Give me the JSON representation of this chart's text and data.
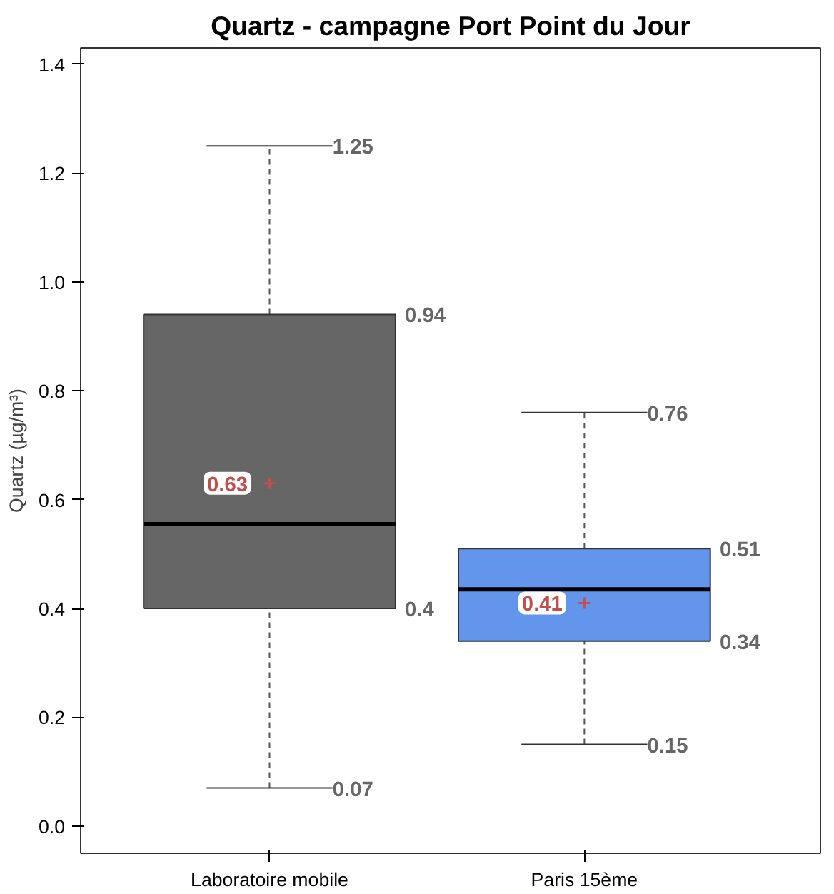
{
  "chart_data": {
    "type": "box",
    "title": "Quartz - campagne Port Point du Jour",
    "ylabel": "Quartz (µg/m³)",
    "categories": [
      "Laboratoire mobile",
      "Paris 15ème"
    ],
    "colors": [
      "#666666",
      "#6495ed"
    ],
    "boxes": [
      {
        "low": 0.07,
        "q1": 0.4,
        "median": 0.555,
        "q3": 0.94,
        "high": 1.25,
        "mean": 0.63
      },
      {
        "low": 0.15,
        "q1": 0.34,
        "median": 0.435,
        "q3": 0.51,
        "high": 0.76,
        "mean": 0.41
      }
    ],
    "annotations": [
      "1.25",
      "0.94",
      "0.63",
      "0.4",
      "0.07",
      "0.76",
      "0.51",
      "0.41",
      "0.34",
      "0.15"
    ],
    "ylim": [
      -0.05,
      1.43
    ],
    "yticks": [
      {
        "value": 0,
        "label": "0.0"
      },
      0.2,
      0.4,
      0.6,
      0.8,
      {
        "value": 1,
        "label": "1.0"
      },
      1.2,
      1.4
    ],
    "grid": false
  }
}
